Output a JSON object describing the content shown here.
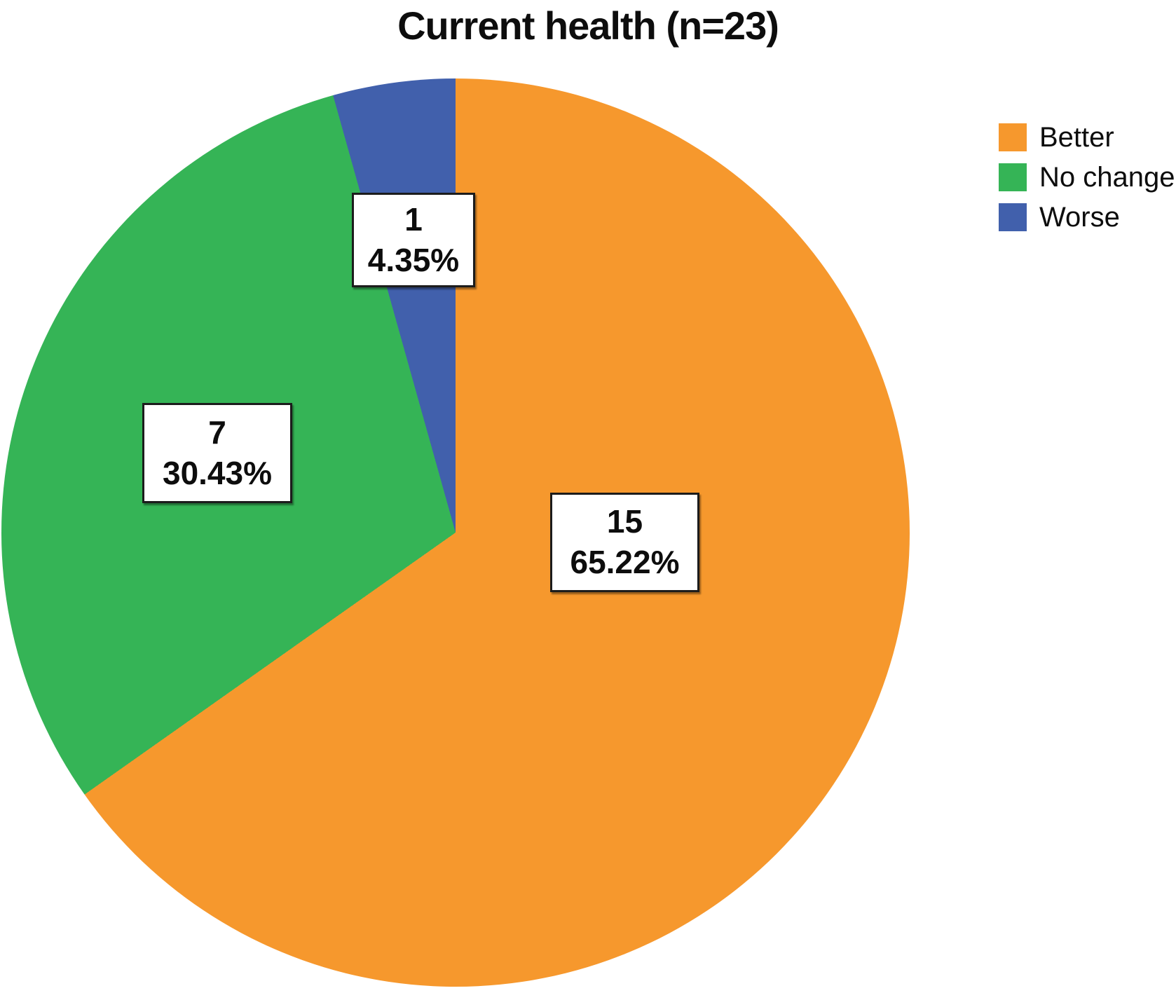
{
  "chart_data": {
    "type": "pie",
    "title": "Current health (n=23)",
    "n_total": 23,
    "categories": [
      "Better",
      "No change",
      "Worse"
    ],
    "values": [
      15,
      7,
      1
    ],
    "percent_labels": [
      "65.22%",
      "30.43%",
      "4.35%"
    ],
    "value_labels": [
      "15",
      "7",
      "1"
    ],
    "colors": [
      "#F6982D",
      "#35B456",
      "#4160AC"
    ],
    "legend_position": "top-right",
    "start_angle_deg": 0,
    "direction": "clockwise",
    "slice_label_style": "white-box-black-border"
  }
}
